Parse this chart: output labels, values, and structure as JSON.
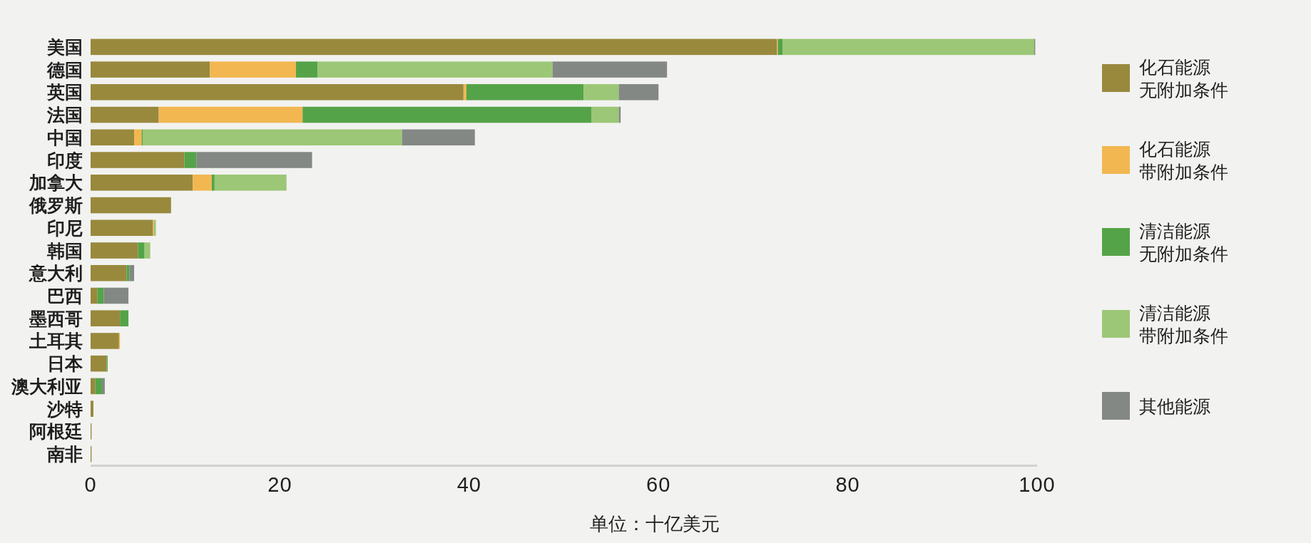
{
  "chart_data": {
    "type": "bar",
    "orientation": "horizontal",
    "stacked": true,
    "categories": [
      "美国",
      "德国",
      "英国",
      "法国",
      "中国",
      "印度",
      "加拿大",
      "俄罗斯",
      "印尼",
      "韩国",
      "意大利",
      "巴西",
      "墨西哥",
      "土耳其",
      "日本",
      "澳大利亚",
      "沙特",
      "阿根廷",
      "南非"
    ],
    "series": [
      {
        "name": "化石能源无附加条件",
        "color": "#98893d",
        "values": [
          72.5,
          12.6,
          39.4,
          7.2,
          4.6,
          9.9,
          10.8,
          8.5,
          6.6,
          5.0,
          3.8,
          0.7,
          3.1,
          3.0,
          1.7,
          0.5,
          0.3,
          0.1,
          0.1
        ]
      },
      {
        "name": "化石能源带附加条件",
        "color": "#f2b750",
        "values": [
          0.1,
          9.1,
          0.3,
          15.2,
          0.8,
          0,
          2.0,
          0,
          0.1,
          0,
          0,
          0,
          0,
          0.1,
          0,
          0,
          0,
          0,
          0
        ]
      },
      {
        "name": "清洁能源无附加条件",
        "color": "#55a348",
        "values": [
          0.5,
          2.3,
          12.4,
          30.5,
          0.1,
          1.3,
          0.3,
          0,
          0,
          0.7,
          0.3,
          0.7,
          0.9,
          0,
          0.1,
          0.7,
          0,
          0,
          0
        ]
      },
      {
        "name": "清洁能源带附加条件",
        "color": "#9cc776",
        "values": [
          26.6,
          24.8,
          3.7,
          2.9,
          27.4,
          0,
          7.6,
          0,
          0.2,
          0.6,
          0,
          0,
          0,
          0,
          0,
          0,
          0,
          0,
          0
        ]
      },
      {
        "name": "其他能源",
        "color": "#838884",
        "values": [
          0.1,
          12.1,
          4.2,
          0.2,
          7.7,
          12.2,
          0,
          0,
          0,
          0,
          0.5,
          2.6,
          0,
          0,
          0,
          0.3,
          0,
          0,
          0
        ]
      }
    ],
    "xlim": [
      0,
      100
    ],
    "xticks": [
      0,
      20,
      40,
      60,
      80,
      100
    ],
    "xlabel": "单位：十亿美元",
    "legend": "right"
  }
}
